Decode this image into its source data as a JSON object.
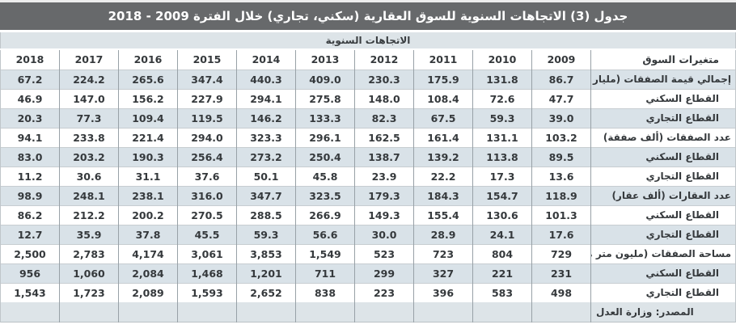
{
  "title": "جدول (3) الاتجاهات السنوية للسوق العقارية (سكني، تجاري) خلال الفترة 2009 - 2018",
  "subheader": "الاتجاهات السنوية",
  "colors": {
    "title_bar_bg": "#67696b",
    "title_text": "#ffffff",
    "subheader_bg": "#dde4e8",
    "shaded_row_bg": "#d9e2e8",
    "vertical_border": "#98a1a7",
    "horizontal_border": "#c7cdd1"
  },
  "table": {
    "label_header": "متغيرات السوق",
    "years": [
      "2018",
      "2017",
      "2016",
      "2015",
      "2014",
      "2013",
      "2012",
      "2011",
      "2010",
      "2009"
    ],
    "rows": [
      {
        "label": "إجمالي قيمة الصفقات (مليار ريال)",
        "sub": false,
        "values": [
          "67.2",
          "224.2",
          "265.6",
          "347.4",
          "440.3",
          "409.0",
          "230.3",
          "175.9",
          "131.8",
          "86.7"
        ]
      },
      {
        "label": "القطاع السكني",
        "sub": true,
        "values": [
          "46.9",
          "147.0",
          "156.2",
          "227.9",
          "294.1",
          "275.8",
          "148.0",
          "108.4",
          "72.6",
          "47.7"
        ]
      },
      {
        "label": "القطاع التجاري",
        "sub": true,
        "values": [
          "20.3",
          "77.3",
          "109.4",
          "119.5",
          "146.2",
          "133.3",
          "82.3",
          "67.5",
          "59.3",
          "39.0"
        ]
      },
      {
        "label": "عدد الصفقات (ألف صفقة)",
        "sub": false,
        "values": [
          "94.1",
          "233.8",
          "221.4",
          "294.0",
          "323.3",
          "296.1",
          "162.5",
          "161.4",
          "131.1",
          "103.2"
        ]
      },
      {
        "label": "القطاع السكني",
        "sub": true,
        "values": [
          "83.0",
          "203.2",
          "190.3",
          "256.4",
          "273.2",
          "250.4",
          "138.7",
          "139.2",
          "113.8",
          "89.5"
        ]
      },
      {
        "label": "القطاع التجاري",
        "sub": true,
        "values": [
          "11.2",
          "30.6",
          "31.1",
          "37.6",
          "50.1",
          "45.8",
          "23.9",
          "22.2",
          "17.3",
          "13.6"
        ]
      },
      {
        "label": "عدد العقارات (ألف عقار)",
        "sub": false,
        "values": [
          "98.9",
          "248.1",
          "238.1",
          "316.0",
          "347.7",
          "323.5",
          "179.3",
          "184.3",
          "154.7",
          "118.9"
        ]
      },
      {
        "label": "القطاع السكني",
        "sub": true,
        "values": [
          "86.2",
          "212.2",
          "200.2",
          "270.5",
          "288.5",
          "266.9",
          "149.3",
          "155.4",
          "130.6",
          "101.3"
        ]
      },
      {
        "label": "القطاع التجاري",
        "sub": true,
        "values": [
          "12.7",
          "35.9",
          "37.8",
          "45.5",
          "59.3",
          "56.6",
          "30.0",
          "28.9",
          "24.1",
          "17.6"
        ]
      },
      {
        "label": "مساحة الصفقات (مليون متر مربع)",
        "sub": false,
        "values": [
          "2,500",
          "2,783",
          "4,174",
          "3,061",
          "3,853",
          "1,549",
          "523",
          "723",
          "804",
          "729"
        ]
      },
      {
        "label": "القطاع السكني",
        "sub": true,
        "values": [
          "956",
          "1,060",
          "2,084",
          "1,468",
          "1,201",
          "711",
          "299",
          "327",
          "221",
          "231"
        ]
      },
      {
        "label": "القطاع التجاري",
        "sub": true,
        "values": [
          "1,543",
          "1,723",
          "2,089",
          "1,593",
          "2,652",
          "838",
          "223",
          "396",
          "583",
          "498"
        ]
      }
    ],
    "source_note": "المصدر: وزارة العدل"
  }
}
